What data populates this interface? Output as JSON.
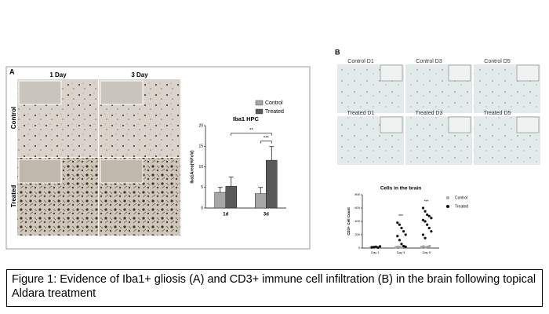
{
  "figure": {
    "panel_a": {
      "label": "A",
      "columns": [
        "1 Day",
        "3 Day"
      ],
      "rows": [
        "Control",
        "Treated"
      ]
    },
    "panel_b": {
      "label": "B",
      "images": [
        "Control D1",
        "Control D3",
        "Control D5",
        "Treated D1",
        "Treated D3",
        "Treated D5"
      ]
    },
    "caption": "Figure 1: Evidence of Iba1+ gliosis (A) and CD3+ immune cell infiltration (B) in the brain following topical Aldara treatment"
  },
  "chart_data": [
    {
      "type": "bar",
      "title": "Iba1 HPC",
      "y_label": "Iba1Area(%FoV)",
      "categories": [
        "1d",
        "3d"
      ],
      "series": [
        {
          "name": "Control",
          "color": "#a6a6a6",
          "values": [
            3.8,
            3.5
          ],
          "errors": [
            1.2,
            1.5
          ]
        },
        {
          "name": "Treated",
          "color": "#595959",
          "values": [
            5.3,
            11.6
          ],
          "errors": [
            2.2,
            3.3
          ]
        }
      ],
      "ylim": [
        0,
        20
      ],
      "yticks": [
        0,
        5,
        10,
        15,
        20
      ],
      "annotations": [
        "**",
        "***"
      ],
      "legend": "upper-right"
    },
    {
      "type": "strip",
      "title": "Cells in the brain",
      "y_label": "CD3+ Cell Count",
      "categories": [
        "Day 1",
        "Day 3",
        "Day 5"
      ],
      "series": [
        {
          "name": "Control",
          "color": "#a6a6a6",
          "values": [
            [
              5,
              8,
              3,
              10,
              6,
              4
            ],
            [
              10,
              20,
              15,
              8,
              25,
              12
            ],
            [
              15,
              25,
              10,
              20,
              30,
              18
            ]
          ]
        },
        {
          "name": "Treated",
          "color": "#111111",
          "values": [
            [
              10,
              15,
              20,
              8,
              25,
              12
            ],
            [
              380,
              350,
              300,
              250,
              200,
              180,
              120,
              60,
              30,
              20
            ],
            [
              600,
              550,
              500,
              480,
              450,
              420,
              400,
              350,
              300,
              250,
              200,
              150
            ]
          ]
        }
      ],
      "ylim": [
        0,
        800
      ],
      "yticks": [
        0,
        200,
        400,
        600,
        800
      ],
      "annotations": [
        "***",
        "***"
      ],
      "legend": "right"
    }
  ]
}
